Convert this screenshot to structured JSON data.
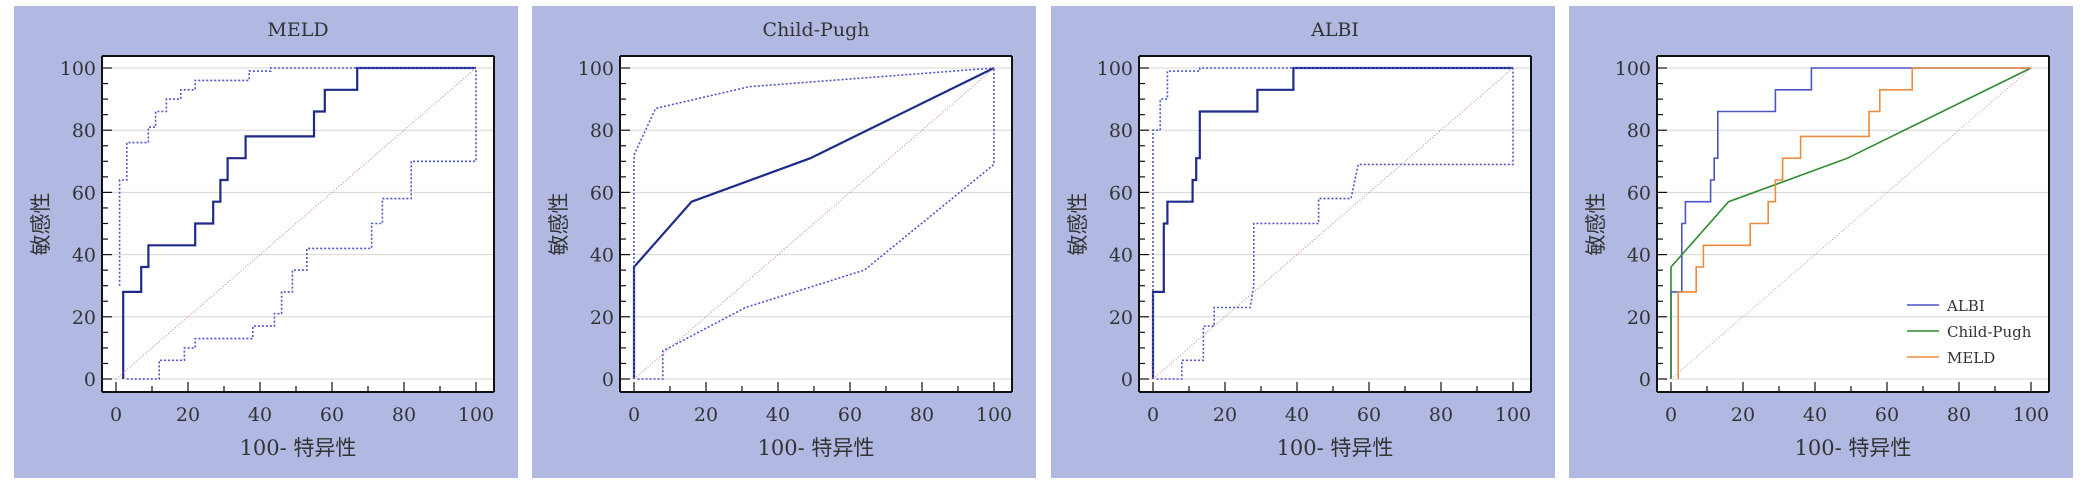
{
  "chart_data": [
    {
      "type": "line",
      "title": "MELD",
      "xlabel": "100- 特异性",
      "ylabel": "敏感性",
      "xlim": [
        0,
        100
      ],
      "ylim": [
        0,
        100
      ],
      "xticks": [
        0,
        20,
        40,
        60,
        80,
        100
      ],
      "yticks": [
        0,
        20,
        40,
        60,
        80,
        100
      ],
      "grid": true,
      "series": [
        {
          "role": "roc",
          "style": "solid",
          "color": "#1f2a8a",
          "points": [
            [
              2,
              0
            ],
            [
              2,
              28
            ],
            [
              7,
              28
            ],
            [
              7,
              36
            ],
            [
              9,
              36
            ],
            [
              9,
              43
            ],
            [
              22,
              43
            ],
            [
              22,
              50
            ],
            [
              27,
              50
            ],
            [
              27,
              57
            ],
            [
              29,
              57
            ],
            [
              29,
              64
            ],
            [
              31,
              64
            ],
            [
              31,
              71
            ],
            [
              36,
              71
            ],
            [
              36,
              78
            ],
            [
              55,
              78
            ],
            [
              55,
              86
            ],
            [
              58,
              86
            ],
            [
              58,
              93
            ],
            [
              67,
              93
            ],
            [
              67,
              100
            ],
            [
              100,
              100
            ]
          ]
        },
        {
          "role": "ci-upper",
          "style": "dotted",
          "color": "#4c56c8",
          "points": [
            [
              1,
              30
            ],
            [
              1,
              64
            ],
            [
              3,
              64
            ],
            [
              3,
              76
            ],
            [
              9,
              76
            ],
            [
              9,
              81
            ],
            [
              11,
              81
            ],
            [
              11,
              86
            ],
            [
              14,
              86
            ],
            [
              14,
              90
            ],
            [
              18,
              90
            ],
            [
              18,
              93
            ],
            [
              22,
              93
            ],
            [
              22,
              96
            ],
            [
              37,
              96
            ],
            [
              37,
              99
            ],
            [
              43,
              99
            ],
            [
              43,
              100
            ],
            [
              100,
              100
            ]
          ]
        },
        {
          "role": "ci-lower",
          "style": "dotted",
          "color": "#4c56c8",
          "points": [
            [
              3,
              0
            ],
            [
              12,
              0
            ],
            [
              12,
              6
            ],
            [
              19,
              6
            ],
            [
              19,
              10
            ],
            [
              22,
              10
            ],
            [
              22,
              13
            ],
            [
              38,
              13
            ],
            [
              38,
              17
            ],
            [
              44,
              17
            ],
            [
              44,
              21
            ],
            [
              46,
              21
            ],
            [
              46,
              28
            ],
            [
              49,
              28
            ],
            [
              49,
              35
            ],
            [
              53,
              35
            ],
            [
              53,
              42
            ],
            [
              71,
              42
            ],
            [
              71,
              50
            ],
            [
              74,
              50
            ],
            [
              74,
              58
            ],
            [
              82,
              58
            ],
            [
              82,
              70
            ],
            [
              100,
              70
            ],
            [
              100,
              100
            ]
          ]
        },
        {
          "role": "reference",
          "style": "diagonal",
          "color": "#d97575",
          "points": [
            [
              0,
              0
            ],
            [
              100,
              100
            ]
          ]
        }
      ]
    },
    {
      "type": "line",
      "title": "Child-Pugh",
      "xlabel": "100- 特异性",
      "ylabel": "敏感性",
      "xlim": [
        0,
        100
      ],
      "ylim": [
        0,
        100
      ],
      "xticks": [
        0,
        20,
        40,
        60,
        80,
        100
      ],
      "yticks": [
        0,
        20,
        40,
        60,
        80,
        100
      ],
      "grid": true,
      "series": [
        {
          "role": "roc",
          "style": "solid",
          "color": "#1f2a8a",
          "points": [
            [
              0,
              0
            ],
            [
              0,
              36
            ],
            [
              16,
              57
            ],
            [
              49,
              71
            ],
            [
              100,
              100
            ]
          ]
        },
        {
          "role": "ci-upper",
          "style": "dotted",
          "color": "#4c56c8",
          "points": [
            [
              0,
              0
            ],
            [
              0,
              72
            ],
            [
              6,
              87
            ],
            [
              32,
              94
            ],
            [
              100,
              100
            ]
          ]
        },
        {
          "role": "ci-lower",
          "style": "dotted",
          "color": "#4c56c8",
          "points": [
            [
              1,
              0
            ],
            [
              8,
              0
            ],
            [
              8,
              9
            ],
            [
              31,
              23
            ],
            [
              64,
              35
            ],
            [
              100,
              69
            ],
            [
              100,
              100
            ]
          ]
        },
        {
          "role": "reference",
          "style": "diagonal",
          "color": "#d97575",
          "points": [
            [
              0,
              0
            ],
            [
              100,
              100
            ]
          ]
        }
      ]
    },
    {
      "type": "line",
      "title": "ALBI",
      "xlabel": "100- 特异性",
      "ylabel": "敏感性",
      "xlim": [
        0,
        100
      ],
      "ylim": [
        0,
        100
      ],
      "xticks": [
        0,
        20,
        40,
        60,
        80,
        100
      ],
      "yticks": [
        0,
        20,
        40,
        60,
        80,
        100
      ],
      "grid": true,
      "series": [
        {
          "role": "roc",
          "style": "solid",
          "color": "#1f2a8a",
          "points": [
            [
              0,
              0
            ],
            [
              0,
              28
            ],
            [
              3,
              28
            ],
            [
              3,
              50
            ],
            [
              4,
              50
            ],
            [
              4,
              57
            ],
            [
              11,
              57
            ],
            [
              11,
              64
            ],
            [
              12,
              64
            ],
            [
              12,
              71
            ],
            [
              13,
              71
            ],
            [
              13,
              86
            ],
            [
              29,
              86
            ],
            [
              29,
              93
            ],
            [
              39,
              93
            ],
            [
              39,
              100
            ],
            [
              100,
              100
            ]
          ]
        },
        {
          "role": "ci-upper",
          "style": "dotted",
          "color": "#4c56c8",
          "points": [
            [
              0,
              0
            ],
            [
              0,
              80
            ],
            [
              2,
              80
            ],
            [
              2,
              90
            ],
            [
              4,
              90
            ],
            [
              4,
              99
            ],
            [
              13,
              99
            ],
            [
              13,
              100
            ],
            [
              100,
              100
            ]
          ]
        },
        {
          "role": "ci-lower",
          "style": "dotted",
          "color": "#4c56c8",
          "points": [
            [
              1,
              0
            ],
            [
              8,
              0
            ],
            [
              8,
              6
            ],
            [
              14,
              6
            ],
            [
              14,
              17
            ],
            [
              17,
              17
            ],
            [
              17,
              23
            ],
            [
              27,
              23
            ],
            [
              28,
              30
            ],
            [
              28,
              50
            ],
            [
              46,
              50
            ],
            [
              46,
              58
            ],
            [
              55,
              58
            ],
            [
              57,
              69
            ],
            [
              100,
              69
            ],
            [
              100,
              100
            ]
          ]
        },
        {
          "role": "reference",
          "style": "diagonal",
          "color": "#d97575",
          "points": [
            [
              0,
              0
            ],
            [
              100,
              100
            ]
          ]
        }
      ]
    },
    {
      "type": "line",
      "title": "",
      "xlabel": "100- 特异性",
      "ylabel": "敏感性",
      "xlim": [
        0,
        100
      ],
      "ylim": [
        0,
        100
      ],
      "xticks": [
        0,
        20,
        40,
        60,
        80,
        100
      ],
      "yticks": [
        0,
        20,
        40,
        60,
        80,
        100
      ],
      "grid": true,
      "legend": "bottom-right",
      "series": [
        {
          "name": "ALBI",
          "role": "roc",
          "style": "solid",
          "color": "#4b55c4",
          "points": [
            [
              0,
              0
            ],
            [
              0,
              28
            ],
            [
              3,
              28
            ],
            [
              3,
              50
            ],
            [
              4,
              50
            ],
            [
              4,
              57
            ],
            [
              11,
              57
            ],
            [
              11,
              64
            ],
            [
              12,
              64
            ],
            [
              12,
              71
            ],
            [
              13,
              71
            ],
            [
              13,
              86
            ],
            [
              29,
              86
            ],
            [
              29,
              93
            ],
            [
              39,
              93
            ],
            [
              39,
              100
            ],
            [
              100,
              100
            ]
          ]
        },
        {
          "name": "Child-Pugh",
          "role": "roc",
          "style": "solid",
          "color": "#2e8b2e",
          "points": [
            [
              0,
              0
            ],
            [
              0,
              36
            ],
            [
              16,
              57
            ],
            [
              49,
              71
            ],
            [
              100,
              100
            ]
          ]
        },
        {
          "name": "MELD",
          "role": "roc",
          "style": "solid",
          "color": "#f08a3c",
          "points": [
            [
              2,
              0
            ],
            [
              2,
              28
            ],
            [
              7,
              28
            ],
            [
              7,
              36
            ],
            [
              9,
              36
            ],
            [
              9,
              43
            ],
            [
              22,
              43
            ],
            [
              22,
              50
            ],
            [
              27,
              50
            ],
            [
              27,
              57
            ],
            [
              29,
              57
            ],
            [
              29,
              64
            ],
            [
              31,
              64
            ],
            [
              31,
              71
            ],
            [
              36,
              71
            ],
            [
              36,
              78
            ],
            [
              55,
              78
            ],
            [
              55,
              86
            ],
            [
              58,
              86
            ],
            [
              58,
              93
            ],
            [
              67,
              93
            ],
            [
              67,
              100
            ],
            [
              100,
              100
            ]
          ]
        },
        {
          "role": "reference",
          "style": "diagonal",
          "color": "#d98aa8",
          "points": [
            [
              0,
              0
            ],
            [
              100,
              100
            ]
          ]
        }
      ]
    }
  ]
}
